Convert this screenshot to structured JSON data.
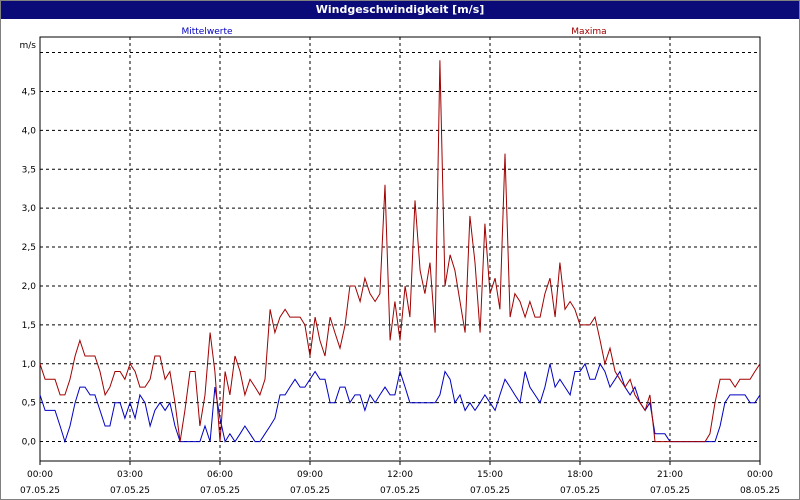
{
  "window": {
    "title": "Windgeschwindigkeit [m/s]"
  },
  "chart_data": {
    "type": "line",
    "title": "Windgeschwindigkeit [m/s]",
    "ylabel": "m/s",
    "xlabel": "",
    "ylim": [
      -0.25,
      5.2
    ],
    "y_ticks": [
      "0,0",
      "0,5",
      "1,0",
      "1,5",
      "2,0",
      "2,5",
      "3,0",
      "3,5",
      "4,0",
      "4,5"
    ],
    "y_tick_values": [
      0,
      0.5,
      1,
      1.5,
      2,
      2.5,
      3,
      3.5,
      4,
      4.5
    ],
    "x_range_hours": [
      0,
      24
    ],
    "x_ticks": [
      {
        "time": "00:00",
        "date": "07.05.25"
      },
      {
        "time": "03:00",
        "date": "07.05.25"
      },
      {
        "time": "06:00",
        "date": "07.05.25"
      },
      {
        "time": "09:00",
        "date": "07.05.25"
      },
      {
        "time": "12:00",
        "date": "07.05.25"
      },
      {
        "time": "15:00",
        "date": "07.05.25"
      },
      {
        "time": "18:00",
        "date": "07.05.25"
      },
      {
        "time": "21:00",
        "date": "07.05.25"
      },
      {
        "time": "00:00",
        "date": "08.05.25"
      }
    ],
    "grid": true,
    "legend_placement": "top",
    "series": [
      {
        "name": "Mittelwerte",
        "color": "#0000c0",
        "points": [
          [
            0.0,
            0.6
          ],
          [
            0.17,
            0.4
          ],
          [
            0.33,
            0.4
          ],
          [
            0.5,
            0.4
          ],
          [
            0.67,
            0.2
          ],
          [
            0.83,
            0.0
          ],
          [
            1.0,
            0.2
          ],
          [
            1.17,
            0.5
          ],
          [
            1.33,
            0.7
          ],
          [
            1.5,
            0.7
          ],
          [
            1.67,
            0.6
          ],
          [
            1.83,
            0.6
          ],
          [
            2.0,
            0.4
          ],
          [
            2.17,
            0.2
          ],
          [
            2.33,
            0.2
          ],
          [
            2.5,
            0.5
          ],
          [
            2.67,
            0.5
          ],
          [
            2.83,
            0.3
          ],
          [
            3.0,
            0.5
          ],
          [
            3.17,
            0.3
          ],
          [
            3.33,
            0.6
          ],
          [
            3.5,
            0.5
          ],
          [
            3.67,
            0.2
          ],
          [
            3.83,
            0.4
          ],
          [
            4.0,
            0.5
          ],
          [
            4.17,
            0.4
          ],
          [
            4.33,
            0.5
          ],
          [
            4.5,
            0.2
          ],
          [
            4.67,
            0.0
          ],
          [
            4.83,
            0.0
          ],
          [
            5.0,
            0.0
          ],
          [
            5.17,
            0.0
          ],
          [
            5.33,
            0.0
          ],
          [
            5.5,
            0.2
          ],
          [
            5.67,
            0.0
          ],
          [
            5.83,
            0.7
          ],
          [
            6.0,
            0.3
          ],
          [
            6.17,
            0.0
          ],
          [
            6.33,
            0.1
          ],
          [
            6.5,
            0.0
          ],
          [
            6.67,
            0.1
          ],
          [
            6.83,
            0.2
          ],
          [
            7.0,
            0.1
          ],
          [
            7.17,
            0.0
          ],
          [
            7.33,
            0.0
          ],
          [
            7.5,
            0.1
          ],
          [
            7.67,
            0.2
          ],
          [
            7.83,
            0.3
          ],
          [
            8.0,
            0.6
          ],
          [
            8.17,
            0.6
          ],
          [
            8.33,
            0.7
          ],
          [
            8.5,
            0.8
          ],
          [
            8.67,
            0.7
          ],
          [
            8.83,
            0.7
          ],
          [
            9.0,
            0.8
          ],
          [
            9.17,
            0.9
          ],
          [
            9.33,
            0.8
          ],
          [
            9.5,
            0.8
          ],
          [
            9.67,
            0.5
          ],
          [
            9.83,
            0.5
          ],
          [
            10.0,
            0.7
          ],
          [
            10.17,
            0.7
          ],
          [
            10.33,
            0.5
          ],
          [
            10.5,
            0.6
          ],
          [
            10.67,
            0.6
          ],
          [
            10.83,
            0.4
          ],
          [
            11.0,
            0.6
          ],
          [
            11.17,
            0.5
          ],
          [
            11.33,
            0.6
          ],
          [
            11.5,
            0.7
          ],
          [
            11.67,
            0.6
          ],
          [
            11.83,
            0.6
          ],
          [
            12.0,
            0.9
          ],
          [
            12.17,
            0.7
          ],
          [
            12.33,
            0.5
          ],
          [
            12.5,
            0.5
          ],
          [
            12.67,
            0.5
          ],
          [
            12.83,
            0.5
          ],
          [
            13.0,
            0.5
          ],
          [
            13.17,
            0.5
          ],
          [
            13.33,
            0.6
          ],
          [
            13.5,
            0.9
          ],
          [
            13.67,
            0.8
          ],
          [
            13.83,
            0.5
          ],
          [
            14.0,
            0.6
          ],
          [
            14.17,
            0.4
          ],
          [
            14.33,
            0.5
          ],
          [
            14.5,
            0.4
          ],
          [
            14.67,
            0.5
          ],
          [
            14.83,
            0.6
          ],
          [
            15.0,
            0.5
          ],
          [
            15.17,
            0.4
          ],
          [
            15.33,
            0.6
          ],
          [
            15.5,
            0.8
          ],
          [
            15.67,
            0.7
          ],
          [
            15.83,
            0.6
          ],
          [
            16.0,
            0.5
          ],
          [
            16.17,
            0.9
          ],
          [
            16.33,
            0.7
          ],
          [
            16.5,
            0.6
          ],
          [
            16.67,
            0.5
          ],
          [
            16.83,
            0.7
          ],
          [
            17.0,
            1.0
          ],
          [
            17.17,
            0.7
          ],
          [
            17.33,
            0.8
          ],
          [
            17.5,
            0.7
          ],
          [
            17.67,
            0.6
          ],
          [
            17.83,
            0.9
          ],
          [
            18.0,
            0.9
          ],
          [
            18.17,
            1.0
          ],
          [
            18.33,
            0.8
          ],
          [
            18.5,
            0.8
          ],
          [
            18.67,
            1.0
          ],
          [
            18.83,
            0.9
          ],
          [
            19.0,
            0.7
          ],
          [
            19.17,
            0.8
          ],
          [
            19.33,
            0.9
          ],
          [
            19.5,
            0.7
          ],
          [
            19.67,
            0.6
          ],
          [
            19.83,
            0.7
          ],
          [
            20.0,
            0.5
          ],
          [
            20.17,
            0.4
          ],
          [
            20.33,
            0.5
          ],
          [
            20.5,
            0.1
          ],
          [
            20.67,
            0.1
          ],
          [
            20.83,
            0.1
          ],
          [
            21.0,
            0.0
          ],
          [
            21.17,
            0.0
          ],
          [
            21.33,
            0.0
          ],
          [
            21.5,
            0.0
          ],
          [
            21.67,
            0.0
          ],
          [
            21.83,
            0.0
          ],
          [
            22.0,
            0.0
          ],
          [
            22.17,
            0.0
          ],
          [
            22.33,
            0.0
          ],
          [
            22.5,
            0.0
          ],
          [
            22.67,
            0.2
          ],
          [
            22.83,
            0.5
          ],
          [
            23.0,
            0.6
          ],
          [
            23.17,
            0.6
          ],
          [
            23.33,
            0.6
          ],
          [
            23.5,
            0.6
          ],
          [
            23.67,
            0.5
          ],
          [
            23.83,
            0.5
          ],
          [
            24.0,
            0.6
          ]
        ]
      },
      {
        "name": "Maxima",
        "color": "#a00000",
        "points": [
          [
            0.0,
            1.0
          ],
          [
            0.17,
            0.8
          ],
          [
            0.33,
            0.8
          ],
          [
            0.5,
            0.8
          ],
          [
            0.67,
            0.6
          ],
          [
            0.83,
            0.6
          ],
          [
            1.0,
            0.8
          ],
          [
            1.17,
            1.1
          ],
          [
            1.33,
            1.3
          ],
          [
            1.5,
            1.1
          ],
          [
            1.67,
            1.1
          ],
          [
            1.83,
            1.1
          ],
          [
            2.0,
            0.9
          ],
          [
            2.17,
            0.6
          ],
          [
            2.33,
            0.7
          ],
          [
            2.5,
            0.9
          ],
          [
            2.67,
            0.9
          ],
          [
            2.83,
            0.8
          ],
          [
            3.0,
            1.0
          ],
          [
            3.17,
            0.9
          ],
          [
            3.33,
            0.7
          ],
          [
            3.5,
            0.7
          ],
          [
            3.67,
            0.8
          ],
          [
            3.83,
            1.1
          ],
          [
            4.0,
            1.1
          ],
          [
            4.17,
            0.8
          ],
          [
            4.33,
            0.9
          ],
          [
            4.5,
            0.5
          ],
          [
            4.67,
            0.0
          ],
          [
            4.83,
            0.4
          ],
          [
            5.0,
            0.9
          ],
          [
            5.17,
            0.9
          ],
          [
            5.33,
            0.2
          ],
          [
            5.5,
            0.6
          ],
          [
            5.67,
            1.4
          ],
          [
            5.83,
            0.9
          ],
          [
            6.0,
            0.0
          ],
          [
            6.17,
            0.9
          ],
          [
            6.33,
            0.6
          ],
          [
            6.5,
            1.1
          ],
          [
            6.67,
            0.9
          ],
          [
            6.83,
            0.6
          ],
          [
            7.0,
            0.8
          ],
          [
            7.17,
            0.7
          ],
          [
            7.33,
            0.6
          ],
          [
            7.5,
            0.8
          ],
          [
            7.67,
            1.7
          ],
          [
            7.83,
            1.4
          ],
          [
            8.0,
            1.6
          ],
          [
            8.17,
            1.7
          ],
          [
            8.33,
            1.6
          ],
          [
            8.5,
            1.6
          ],
          [
            8.67,
            1.6
          ],
          [
            8.83,
            1.5
          ],
          [
            9.0,
            1.1
          ],
          [
            9.17,
            1.6
          ],
          [
            9.33,
            1.3
          ],
          [
            9.5,
            1.1
          ],
          [
            9.67,
            1.6
          ],
          [
            9.83,
            1.4
          ],
          [
            10.0,
            1.2
          ],
          [
            10.17,
            1.5
          ],
          [
            10.33,
            2.0
          ],
          [
            10.5,
            2.0
          ],
          [
            10.67,
            1.8
          ],
          [
            10.83,
            2.1
          ],
          [
            11.0,
            1.9
          ],
          [
            11.17,
            1.8
          ],
          [
            11.33,
            1.9
          ],
          [
            11.5,
            3.3
          ],
          [
            11.67,
            1.3
          ],
          [
            11.83,
            1.8
          ],
          [
            12.0,
            1.3
          ],
          [
            12.17,
            2.0
          ],
          [
            12.33,
            1.6
          ],
          [
            12.5,
            3.1
          ],
          [
            12.67,
            2.2
          ],
          [
            12.83,
            1.9
          ],
          [
            13.0,
            2.3
          ],
          [
            13.17,
            1.4
          ],
          [
            13.33,
            4.9
          ],
          [
            13.5,
            2.0
          ],
          [
            13.67,
            2.4
          ],
          [
            13.83,
            2.2
          ],
          [
            14.0,
            1.8
          ],
          [
            14.17,
            1.4
          ],
          [
            14.33,
            2.9
          ],
          [
            14.5,
            2.3
          ],
          [
            14.67,
            1.4
          ],
          [
            14.83,
            2.8
          ],
          [
            15.0,
            1.9
          ],
          [
            15.17,
            2.1
          ],
          [
            15.33,
            1.7
          ],
          [
            15.5,
            3.7
          ],
          [
            15.67,
            1.6
          ],
          [
            15.83,
            1.9
          ],
          [
            16.0,
            1.8
          ],
          [
            16.17,
            1.6
          ],
          [
            16.33,
            1.8
          ],
          [
            16.5,
            1.6
          ],
          [
            16.67,
            1.6
          ],
          [
            16.83,
            1.9
          ],
          [
            17.0,
            2.1
          ],
          [
            17.17,
            1.6
          ],
          [
            17.33,
            2.3
          ],
          [
            17.5,
            1.7
          ],
          [
            17.67,
            1.8
          ],
          [
            17.83,
            1.7
          ],
          [
            18.0,
            1.5
          ],
          [
            18.17,
            1.5
          ],
          [
            18.33,
            1.5
          ],
          [
            18.5,
            1.6
          ],
          [
            18.67,
            1.3
          ],
          [
            18.83,
            1.0
          ],
          [
            19.0,
            1.2
          ],
          [
            19.17,
            0.9
          ],
          [
            19.33,
            0.8
          ],
          [
            19.5,
            0.7
          ],
          [
            19.67,
            0.8
          ],
          [
            19.83,
            0.6
          ],
          [
            20.0,
            0.5
          ],
          [
            20.17,
            0.4
          ],
          [
            20.33,
            0.6
          ],
          [
            20.5,
            0.0
          ],
          [
            20.67,
            0.0
          ],
          [
            20.83,
            0.0
          ],
          [
            21.0,
            0.0
          ],
          [
            21.17,
            0.0
          ],
          [
            21.33,
            0.0
          ],
          [
            21.5,
            0.0
          ],
          [
            21.67,
            0.0
          ],
          [
            21.83,
            0.0
          ],
          [
            22.0,
            0.0
          ],
          [
            22.17,
            0.0
          ],
          [
            22.33,
            0.1
          ],
          [
            22.5,
            0.5
          ],
          [
            22.67,
            0.8
          ],
          [
            22.83,
            0.8
          ],
          [
            23.0,
            0.8
          ],
          [
            23.17,
            0.7
          ],
          [
            23.33,
            0.8
          ],
          [
            23.5,
            0.8
          ],
          [
            23.67,
            0.8
          ],
          [
            23.83,
            0.9
          ],
          [
            24.0,
            1.0
          ]
        ]
      }
    ]
  }
}
